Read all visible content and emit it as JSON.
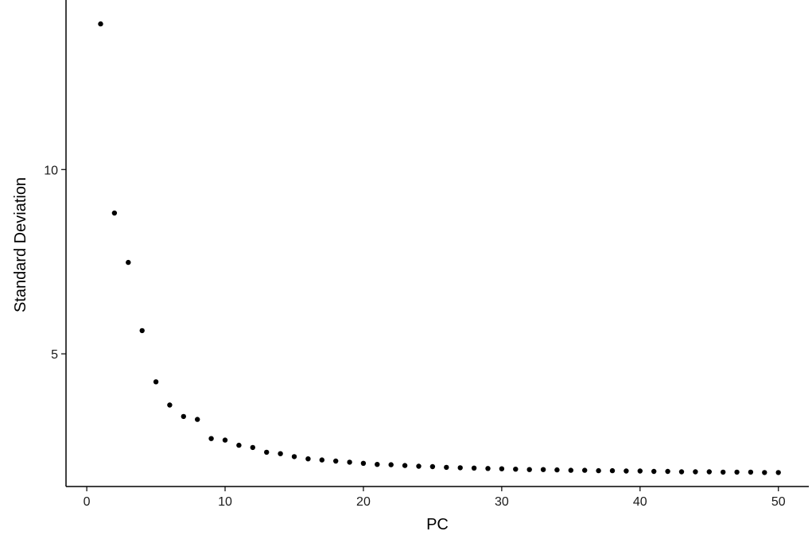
{
  "chart_data": {
    "type": "scatter",
    "title": "",
    "xlabel": "PC",
    "ylabel": "Standard Deviation",
    "xlim": [
      -1.5,
      52.2
    ],
    "ylim": [
      1.4,
      14.6
    ],
    "x_ticks": [
      0,
      10,
      20,
      30,
      40,
      50
    ],
    "y_ticks": [
      5,
      10
    ],
    "grid": false,
    "legend": "none",
    "point_color": "#000000",
    "series": [
      {
        "x": [
          1,
          2,
          3,
          4,
          5,
          6,
          7,
          8,
          9,
          10,
          11,
          12,
          13,
          14,
          15,
          16,
          17,
          18,
          19,
          20,
          21,
          22,
          23,
          24,
          25,
          26,
          27,
          28,
          29,
          30,
          31,
          32,
          33,
          34,
          35,
          36,
          37,
          38,
          39,
          40,
          41,
          42,
          43,
          44,
          45,
          46,
          47,
          48,
          49,
          50
        ],
        "y": [
          13.95,
          8.82,
          7.48,
          5.63,
          4.24,
          3.61,
          3.3,
          3.22,
          2.7,
          2.66,
          2.52,
          2.46,
          2.33,
          2.29,
          2.21,
          2.15,
          2.12,
          2.09,
          2.06,
          2.03,
          2.0,
          1.99,
          1.97,
          1.95,
          1.94,
          1.92,
          1.91,
          1.9,
          1.89,
          1.88,
          1.87,
          1.86,
          1.86,
          1.85,
          1.84,
          1.84,
          1.83,
          1.83,
          1.82,
          1.82,
          1.81,
          1.81,
          1.8,
          1.8,
          1.8,
          1.79,
          1.79,
          1.79,
          1.78,
          1.78
        ]
      }
    ]
  }
}
